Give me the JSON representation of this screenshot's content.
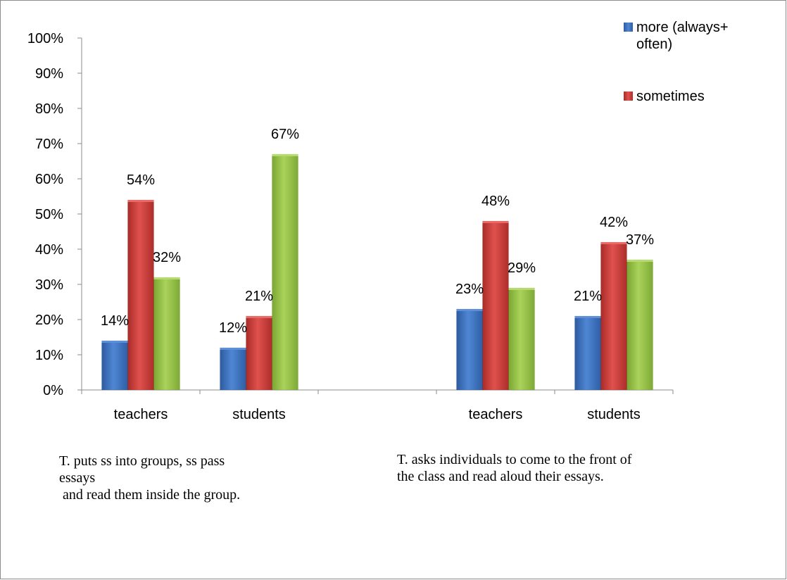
{
  "chart_data": {
    "type": "bar",
    "ylim": [
      0,
      100
    ],
    "yticks": [
      "0%",
      "10%",
      "20%",
      "30%",
      "40%",
      "50%",
      "60%",
      "70%",
      "80%",
      "90%",
      "100%"
    ],
    "groups": [
      {
        "caption": "T. puts ss into groups, ss pass\nessays\n and read them inside the group.",
        "categories": [
          "teachers",
          "students"
        ],
        "series": [
          {
            "name": "more (always+ often)",
            "values": [
              14,
              12
            ],
            "labels": [
              "14%",
              "12%"
            ]
          },
          {
            "name": "sometimes",
            "values": [
              54,
              21
            ],
            "labels": [
              "54%",
              "21%"
            ]
          },
          {
            "values": [
              32,
              67
            ],
            "labels": [
              "32%",
              "67%"
            ]
          }
        ]
      },
      {
        "caption": "T. asks individuals to come to the front of\nthe class and read aloud their essays.",
        "categories": [
          "teachers",
          "students"
        ],
        "series": [
          {
            "name": "more (always+ often)",
            "values": [
              23,
              21
            ],
            "labels": [
              "23%",
              "21%"
            ]
          },
          {
            "name": "sometimes",
            "values": [
              48,
              42
            ],
            "labels": [
              "48%",
              "42%"
            ]
          },
          {
            "values": [
              29,
              37
            ],
            "labels": [
              "29%",
              "37%"
            ]
          }
        ]
      }
    ],
    "legend": {
      "position": "top-right",
      "entries": [
        "more (always+\noften)",
        "sometimes"
      ]
    },
    "colors": {
      "blue": "#3f73c0",
      "blue_dark": "#2a5597",
      "red": "#cc3b38",
      "red_dark": "#9d2624",
      "green": "#93c145",
      "green_dark": "#6f9a2b"
    },
    "grid": false
  }
}
